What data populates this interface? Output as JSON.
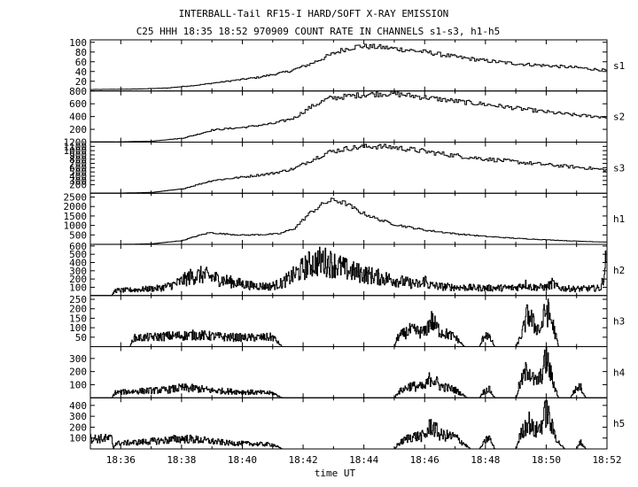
{
  "header": {
    "title": "INTERBALL-Tail RF15-I HARD/SOFT X-RAY EMISSION",
    "subtitle": "C25 HHH 18:35 18:52 970909  COUNT RATE IN CHANNELS s1-s3, h1-h5"
  },
  "chart_data": {
    "type": "line",
    "title": "INTERBALL-Tail RF15-I HARD/SOFT X-RAY EMISSION",
    "subtitle": "C25 HHH 18:35 18:52 970909  COUNT RATE IN CHANNELS s1-s3, h1-h5",
    "xlabel": "time UT",
    "x_unit": "minutes after 18:00 UT",
    "xlim": [
      35,
      52
    ],
    "x_ticks": [
      36,
      38,
      40,
      42,
      44,
      46,
      48,
      50,
      52
    ],
    "x_tick_labels": [
      "18:36",
      "18:38",
      "18:40",
      "18:42",
      "18:44",
      "18:46",
      "18:48",
      "18:50",
      "18:52"
    ],
    "grid": false,
    "legend": "none",
    "color": "#000000",
    "series": [
      {
        "name": "s1",
        "ylim": [
          0,
          105
        ],
        "yticks": [
          20,
          40,
          60,
          80,
          100
        ],
        "points": [
          [
            35.0,
            3
          ],
          [
            36.5,
            4
          ],
          [
            37.5,
            6
          ],
          [
            38.5,
            12
          ],
          [
            39.5,
            20
          ],
          [
            40.5,
            28
          ],
          [
            41.5,
            40
          ],
          [
            42.2,
            55
          ],
          [
            42.8,
            72
          ],
          [
            43.3,
            85
          ],
          [
            43.8,
            92
          ],
          [
            44.5,
            90
          ],
          [
            45.0,
            87
          ],
          [
            46.0,
            80
          ],
          [
            47.0,
            70
          ],
          [
            48.0,
            62
          ],
          [
            49.0,
            56
          ],
          [
            50.0,
            52
          ],
          [
            51.0,
            48
          ],
          [
            52.0,
            42
          ]
        ]
      },
      {
        "name": "s2",
        "ylim": [
          0,
          800
        ],
        "yticks": [
          200,
          400,
          600,
          800
        ],
        "points": [
          [
            35.0,
            5
          ],
          [
            36.0,
            5
          ],
          [
            37.0,
            15
          ],
          [
            38.0,
            60
          ],
          [
            38.5,
            120
          ],
          [
            39.0,
            190
          ],
          [
            40.0,
            230
          ],
          [
            41.0,
            290
          ],
          [
            41.7,
            380
          ],
          [
            42.2,
            540
          ],
          [
            42.8,
            680
          ],
          [
            43.5,
            720
          ],
          [
            44.2,
            750
          ],
          [
            44.8,
            760
          ],
          [
            45.3,
            740
          ],
          [
            46.0,
            700
          ],
          [
            47.0,
            640
          ],
          [
            48.0,
            590
          ],
          [
            49.0,
            530
          ],
          [
            50.0,
            470
          ],
          [
            51.0,
            420
          ],
          [
            52.0,
            390
          ]
        ]
      },
      {
        "name": "s3",
        "ylim": [
          0,
          1200
        ],
        "yticks": [
          200,
          300,
          400,
          500,
          600,
          700,
          800,
          900,
          1000,
          1100,
          1200
        ],
        "points": [
          [
            35.0,
            5
          ],
          [
            36.0,
            5
          ],
          [
            37.0,
            20
          ],
          [
            38.0,
            100
          ],
          [
            38.5,
            200
          ],
          [
            39.0,
            300
          ],
          [
            40.0,
            380
          ],
          [
            41.0,
            470
          ],
          [
            41.7,
            580
          ],
          [
            42.2,
            760
          ],
          [
            42.8,
            960
          ],
          [
            43.5,
            1060
          ],
          [
            44.2,
            1100
          ],
          [
            44.8,
            1090
          ],
          [
            45.5,
            1030
          ],
          [
            46.5,
            930
          ],
          [
            47.5,
            840
          ],
          [
            48.5,
            770
          ],
          [
            49.5,
            700
          ],
          [
            50.5,
            640
          ],
          [
            51.5,
            580
          ],
          [
            52.0,
            540
          ]
        ]
      },
      {
        "name": "h1",
        "ylim": [
          0,
          2700
        ],
        "yticks": [
          500,
          1000,
          1500,
          2000,
          2500
        ],
        "points": [
          [
            35.0,
            2
          ],
          [
            36.0,
            5
          ],
          [
            37.0,
            30
          ],
          [
            38.0,
            200
          ],
          [
            38.5,
            450
          ],
          [
            38.9,
            620
          ],
          [
            39.3,
            560
          ],
          [
            40.0,
            490
          ],
          [
            40.7,
            520
          ],
          [
            41.2,
            560
          ],
          [
            41.7,
            850
          ],
          [
            42.2,
            1650
          ],
          [
            42.7,
            2200
          ],
          [
            43.0,
            2350
          ],
          [
            43.4,
            2150
          ],
          [
            43.8,
            1750
          ],
          [
            44.4,
            1350
          ],
          [
            45.0,
            1050
          ],
          [
            46.0,
            750
          ],
          [
            47.0,
            560
          ],
          [
            48.0,
            420
          ],
          [
            49.0,
            320
          ],
          [
            50.0,
            240
          ],
          [
            51.0,
            170
          ],
          [
            52.0,
            120
          ]
        ]
      },
      {
        "name": "h2",
        "ylim": [
          0,
          620
        ],
        "yticks": [
          100,
          200,
          300,
          400,
          500,
          600
        ],
        "points": [
          [
            35.0,
            0
          ],
          [
            35.7,
            0
          ],
          [
            35.8,
            60
          ],
          [
            36.5,
            70
          ],
          [
            37.3,
            90
          ],
          [
            37.8,
            140
          ],
          [
            38.3,
            230
          ],
          [
            38.7,
            250
          ],
          [
            39.2,
            200
          ],
          [
            39.7,
            160
          ],
          [
            40.3,
            120
          ],
          [
            40.9,
            110
          ],
          [
            41.3,
            150
          ],
          [
            41.7,
            250
          ],
          [
            42.2,
            380
          ],
          [
            42.6,
            420
          ],
          [
            43.0,
            380
          ],
          [
            43.5,
            300
          ],
          [
            44.0,
            260
          ],
          [
            44.5,
            220
          ],
          [
            45.0,
            190
          ],
          [
            45.5,
            150
          ],
          [
            45.9,
            130
          ],
          [
            46.0,
            200
          ],
          [
            46.1,
            130
          ],
          [
            46.5,
            110
          ],
          [
            47.0,
            100
          ],
          [
            48.0,
            90
          ],
          [
            49.0,
            95
          ],
          [
            49.3,
            140
          ],
          [
            49.5,
            100
          ],
          [
            50.0,
            100
          ],
          [
            50.2,
            150
          ],
          [
            50.4,
            90
          ],
          [
            51.0,
            80
          ],
          [
            51.8,
            90
          ],
          [
            52.0,
            500
          ]
        ]
      },
      {
        "name": "h3",
        "ylim": [
          0,
          270
        ],
        "yticks": [
          50,
          100,
          150,
          200,
          250
        ],
        "points": [
          [
            35.0,
            0
          ],
          [
            36.3,
            0
          ],
          [
            36.4,
            45
          ],
          [
            37.0,
            50
          ],
          [
            37.5,
            55
          ],
          [
            38.0,
            58
          ],
          [
            38.5,
            62
          ],
          [
            39.0,
            55
          ],
          [
            39.5,
            50
          ],
          [
            40.0,
            48
          ],
          [
            40.5,
            48
          ],
          [
            41.0,
            50
          ],
          [
            41.3,
            0
          ],
          [
            45.0,
            0
          ],
          [
            45.1,
            50
          ],
          [
            45.5,
            85
          ],
          [
            46.0,
            75
          ],
          [
            46.2,
            140
          ],
          [
            46.5,
            80
          ],
          [
            47.0,
            50
          ],
          [
            47.3,
            0
          ],
          [
            47.8,
            0
          ],
          [
            47.9,
            40
          ],
          [
            48.0,
            70
          ],
          [
            48.2,
            30
          ],
          [
            48.3,
            0
          ],
          [
            49.0,
            0
          ],
          [
            49.2,
            70
          ],
          [
            49.4,
            180
          ],
          [
            49.6,
            110
          ],
          [
            49.8,
            90
          ],
          [
            50.0,
            200
          ],
          [
            50.2,
            120
          ],
          [
            50.4,
            0
          ],
          [
            52.0,
            0
          ]
        ]
      },
      {
        "name": "h4",
        "ylim": [
          0,
          390
        ],
        "yticks": [
          100,
          200,
          300
        ],
        "points": [
          [
            35.0,
            0
          ],
          [
            35.7,
            0
          ],
          [
            35.8,
            40
          ],
          [
            36.5,
            50
          ],
          [
            37.0,
            55
          ],
          [
            37.5,
            60
          ],
          [
            38.0,
            75
          ],
          [
            38.5,
            70
          ],
          [
            39.0,
            55
          ],
          [
            39.5,
            50
          ],
          [
            40.0,
            45
          ],
          [
            40.5,
            40
          ],
          [
            41.0,
            35
          ],
          [
            41.3,
            0
          ],
          [
            45.0,
            0
          ],
          [
            45.1,
            40
          ],
          [
            45.5,
            90
          ],
          [
            46.0,
            80
          ],
          [
            46.2,
            160
          ],
          [
            46.5,
            90
          ],
          [
            47.0,
            60
          ],
          [
            47.4,
            0
          ],
          [
            47.8,
            0
          ],
          [
            47.9,
            40
          ],
          [
            48.1,
            70
          ],
          [
            48.3,
            0
          ],
          [
            49.0,
            0
          ],
          [
            49.1,
            90
          ],
          [
            49.4,
            230
          ],
          [
            49.6,
            120
          ],
          [
            49.8,
            150
          ],
          [
            50.0,
            300
          ],
          [
            50.2,
            130
          ],
          [
            50.4,
            0
          ],
          [
            50.8,
            0
          ],
          [
            50.9,
            50
          ],
          [
            51.1,
            90
          ],
          [
            51.3,
            0
          ],
          [
            52.0,
            0
          ]
        ]
      },
      {
        "name": "h5",
        "ylim": [
          0,
          470
        ],
        "yticks": [
          100,
          200,
          300,
          400
        ],
        "points": [
          [
            35.0,
            95
          ],
          [
            35.7,
            95
          ],
          [
            35.75,
            0
          ],
          [
            35.8,
            50
          ],
          [
            36.5,
            60
          ],
          [
            37.0,
            70
          ],
          [
            37.5,
            80
          ],
          [
            38.0,
            95
          ],
          [
            38.5,
            85
          ],
          [
            39.0,
            70
          ],
          [
            39.5,
            55
          ],
          [
            40.0,
            50
          ],
          [
            40.5,
            45
          ],
          [
            41.0,
            40
          ],
          [
            41.3,
            0
          ],
          [
            45.0,
            0
          ],
          [
            45.1,
            40
          ],
          [
            45.5,
            110
          ],
          [
            46.0,
            120
          ],
          [
            46.2,
            220
          ],
          [
            46.5,
            130
          ],
          [
            47.0,
            110
          ],
          [
            47.5,
            0
          ],
          [
            47.8,
            0
          ],
          [
            47.9,
            40
          ],
          [
            48.1,
            110
          ],
          [
            48.3,
            0
          ],
          [
            49.0,
            0
          ],
          [
            49.1,
            100
          ],
          [
            49.4,
            260
          ],
          [
            49.6,
            160
          ],
          [
            49.8,
            200
          ],
          [
            50.0,
            350
          ],
          [
            50.2,
            180
          ],
          [
            50.4,
            60
          ],
          [
            50.6,
            0
          ],
          [
            51.0,
            0
          ],
          [
            51.1,
            70
          ],
          [
            51.3,
            0
          ],
          [
            52.0,
            0
          ]
        ]
      }
    ]
  }
}
